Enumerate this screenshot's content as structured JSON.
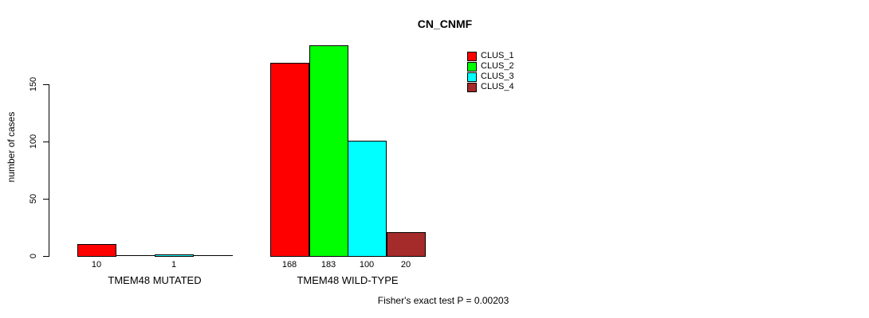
{
  "chart_data": {
    "type": "bar",
    "title": "CN_CNMF",
    "ylabel": "number of cases",
    "xlabel": "",
    "yticks": [
      0,
      50,
      100,
      150
    ],
    "ylim": [
      0,
      190
    ],
    "grid": false,
    "legend_position": "top-right",
    "categories": [
      "TMEM48 MUTATED",
      "TMEM48 WILD-TYPE"
    ],
    "series": [
      {
        "name": "CLUS_1",
        "color": "#FF0000",
        "values": [
          10,
          168
        ]
      },
      {
        "name": "CLUS_2",
        "color": "#00FF00",
        "values": [
          0,
          183
        ]
      },
      {
        "name": "CLUS_3",
        "color": "#00FFFF",
        "values": [
          1,
          100
        ]
      },
      {
        "name": "CLUS_4",
        "color": "#A52A2A",
        "values": [
          0,
          20
        ]
      }
    ],
    "bar_value_labels": [
      [
        "10",
        "",
        "1",
        ""
      ],
      [
        "168",
        "183",
        "100",
        "20"
      ]
    ],
    "footnote": "Fisher's exact test P = 0.00203"
  },
  "colors": {
    "background": "#FFFFFF",
    "text": "#000000",
    "axis": "#000000"
  }
}
